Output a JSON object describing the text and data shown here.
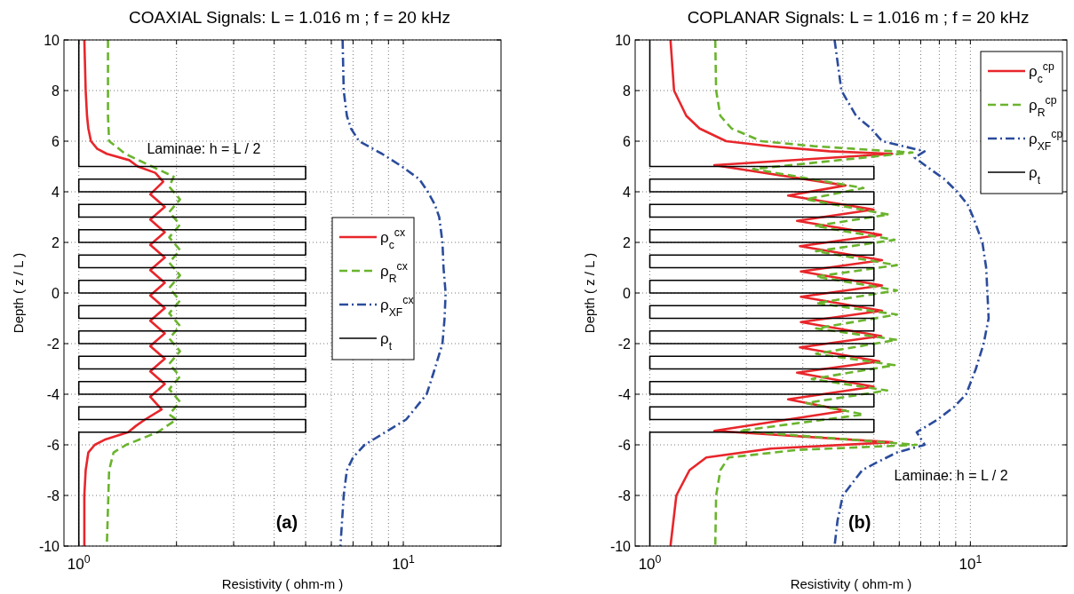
{
  "chart_data": [
    {
      "type": "line",
      "title": "COAXIAL Signals:  L = 1.016 m ;  f = 20 kHz",
      "xlabel": "Resistivity ( ohm-m )",
      "ylabel": "Depth ( z / L )",
      "log": "x",
      "xlim": [
        0.9,
        20
      ],
      "ylim": [
        -10,
        10
      ],
      "xticks": [
        {
          "value": 1,
          "label": "10$^{0}$"
        },
        {
          "value": 2,
          "label": null
        },
        {
          "value": 3,
          "label": null
        },
        {
          "value": 4,
          "label": null
        },
        {
          "value": 5,
          "label": null
        },
        {
          "value": 6,
          "label": null
        },
        {
          "value": 7,
          "label": null
        },
        {
          "value": 8,
          "label": null
        },
        {
          "value": 9,
          "label": null
        },
        {
          "value": 10,
          "label": "10$^{1}$"
        }
      ],
      "yticks": [
        -10,
        -8,
        -6,
        -4,
        -2,
        0,
        2,
        4,
        6,
        8,
        10
      ],
      "grid": true,
      "legend": "right",
      "marker": "none",
      "annotations": [
        "Laminae:  h = L / 2",
        "(a)"
      ],
      "series": [
        {
          "name": "ρ$_{c}$$^{cx}$",
          "color": "#e8262b",
          "line_style": "solid",
          "x": [
            1.04,
            1.05,
            1.06,
            1.07,
            1.09,
            1.14,
            1.22,
            1.43,
            1.52,
            1.72,
            1.82,
            1.66,
            1.84,
            1.66,
            1.84,
            1.66,
            1.84,
            1.66,
            1.84,
            1.66,
            1.84,
            1.66,
            1.84,
            1.66,
            1.84,
            1.66,
            1.84,
            1.66,
            1.8,
            1.6,
            1.5,
            1.42,
            1.2,
            1.12,
            1.07,
            1.05,
            1.04,
            1.04
          ],
          "values": [
            10,
            8,
            7,
            6.5,
            6,
            5.7,
            5.5,
            5.25,
            5,
            4.75,
            4.4,
            3.9,
            3.4,
            2.9,
            2.4,
            1.9,
            1.4,
            0.9,
            0.4,
            -0.1,
            -0.6,
            -1.1,
            -1.6,
            -2.1,
            -2.6,
            -3.1,
            -3.6,
            -4.1,
            -4.6,
            -5,
            -5.25,
            -5.5,
            -5.8,
            -6,
            -6.3,
            -7,
            -8,
            -10
          ]
        },
        {
          "name": "ρ$_{R}$$^{cx}$",
          "color": "#6ab42d",
          "line_style": "dashed",
          "x": [
            1.23,
            1.23,
            1.24,
            1.3,
            1.39,
            1.68,
            1.96,
            1.9,
            2.05,
            1.9,
            2.05,
            1.9,
            2.05,
            1.9,
            2.05,
            1.9,
            2.05,
            1.9,
            2.05,
            1.9,
            2.05,
            1.9,
            2.05,
            1.9,
            2.05,
            1.9,
            2.0,
            1.75,
            1.4,
            1.28,
            1.24,
            1.22
          ],
          "values": [
            10,
            7,
            6,
            5.8,
            5.5,
            5,
            4.6,
            4.2,
            3.7,
            3.2,
            2.7,
            2.2,
            1.7,
            1.2,
            0.7,
            0.2,
            -0.3,
            -0.8,
            -1.3,
            -1.8,
            -2.3,
            -2.8,
            -3.3,
            -3.8,
            -4.3,
            -4.8,
            -5,
            -5.5,
            -6,
            -6.3,
            -7,
            -10
          ]
        },
        {
          "name": "ρ$_{XF}$$^{cx}$",
          "color": "#2b4c9c",
          "line_style": "dashdot",
          "x": [
            6.5,
            6.55,
            6.7,
            6.9,
            7.3,
            8.6,
            9.9,
            11.2,
            11.9,
            12.5,
            12.9,
            13.2,
            13.3,
            13.5,
            13.4,
            13.2,
            12.5,
            11.8,
            10.2,
            8.8,
            7.6,
            7.0,
            6.7,
            6.55,
            6.4
          ],
          "values": [
            10,
            8,
            7,
            6.5,
            6,
            5.5,
            5,
            4.5,
            4,
            3.5,
            3,
            2,
            1,
            0,
            -1,
            -2,
            -3,
            -4,
            -5,
            -5.5,
            -6,
            -6.5,
            -7,
            -8,
            -10
          ]
        },
        {
          "name": "ρ$_{t}$",
          "color": "#000000",
          "line_style": "solid",
          "x": [
            1,
            1,
            5,
            5,
            1,
            1,
            5,
            5,
            1,
            1,
            5,
            5,
            1,
            1,
            5,
            5,
            1,
            1,
            5,
            5,
            1,
            1,
            5,
            5,
            1,
            1,
            5,
            5,
            1,
            1,
            5,
            5,
            1,
            1,
            5,
            5,
            1,
            1,
            5,
            5,
            1,
            1,
            5,
            5,
            1,
            1
          ],
          "values": [
            10,
            5,
            5,
            4.5,
            4.5,
            4,
            4,
            3.5,
            3.5,
            3,
            3,
            2.5,
            2.5,
            2,
            2,
            1.5,
            1.5,
            1,
            1,
            0.5,
            0.5,
            0,
            0,
            -0.5,
            -0.5,
            -1,
            -1,
            -1.5,
            -1.5,
            -2,
            -2,
            -2.5,
            -2.5,
            -3,
            -3,
            -3.5,
            -3.5,
            -4,
            -4,
            -4.5,
            -4.5,
            -5,
            -5,
            -5.5,
            -5.5,
            -10
          ]
        }
      ]
    },
    {
      "type": "line",
      "title": "COPLANAR Signals:  L = 1.016 m ;  f = 20 kHz",
      "xlabel": "Resistivity ( ohm-m )",
      "ylabel": "Depth ( z / L )",
      "log": "x",
      "xlim": [
        0.9,
        20
      ],
      "ylim": [
        -10,
        10
      ],
      "xticks": [
        {
          "value": 1,
          "label": "10$^{0}$"
        },
        {
          "value": 2,
          "label": null
        },
        {
          "value": 3,
          "label": null
        },
        {
          "value": 4,
          "label": null
        },
        {
          "value": 5,
          "label": null
        },
        {
          "value": 6,
          "label": null
        },
        {
          "value": 7,
          "label": null
        },
        {
          "value": 8,
          "label": null
        },
        {
          "value": 9,
          "label": null
        },
        {
          "value": 10,
          "label": "10$^{1}$"
        }
      ],
      "yticks": [
        -10,
        -8,
        -6,
        -4,
        -2,
        0,
        2,
        4,
        6,
        8,
        10
      ],
      "grid": true,
      "legend": "top right",
      "marker": "none",
      "annotations": [
        "Laminae:  h = L / 2",
        "(b)"
      ],
      "series": [
        {
          "name": "ρ$_{c}$$^{cp}$",
          "color": "#e8262b",
          "line_style": "solid",
          "x": [
            1.16,
            1.19,
            1.3,
            1.43,
            1.73,
            2.38,
            3.63,
            5.7,
            1.59,
            4.08,
            2.7,
            4.99,
            2.88,
            5.27,
            2.94,
            5.3,
            2.96,
            5.3,
            2.96,
            5.3,
            2.96,
            5.27,
            2.94,
            5.2,
            2.88,
            4.99,
            2.7,
            4.08,
            1.59,
            5.7,
            2.38,
            1.5,
            1.33,
            1.21,
            1.16
          ],
          "values": [
            10,
            8,
            7,
            6.5,
            6,
            5.8,
            5.6,
            5.5,
            5.05,
            4.25,
            3.85,
            3.3,
            2.85,
            2.3,
            1.85,
            1.3,
            0.85,
            0.3,
            -0.15,
            -0.7,
            -1.15,
            -1.7,
            -2.15,
            -2.7,
            -3.15,
            -3.7,
            -4.2,
            -4.65,
            -5.45,
            -5.9,
            -6.15,
            -6.5,
            -7,
            -8,
            -10
          ]
        },
        {
          "name": "ρ$_{R}$$^{cp}$",
          "color": "#6ab42d",
          "line_style": "dashed",
          "x": [
            1.6,
            1.61,
            1.66,
            1.8,
            2.23,
            3.27,
            6.6,
            2.1,
            4.64,
            3.07,
            5.56,
            3.27,
            5.8,
            3.3,
            5.9,
            3.3,
            5.9,
            3.3,
            5.9,
            3.3,
            5.9,
            3.3,
            5.8,
            3.2,
            5.5,
            3.07,
            4.64,
            1.9,
            6.8,
            2.9,
            1.76,
            1.66,
            1.61,
            1.6
          ],
          "values": [
            10,
            8,
            7,
            6.5,
            6,
            5.8,
            5.55,
            4.9,
            4.15,
            3.7,
            3.1,
            2.65,
            2.1,
            1.65,
            1.1,
            0.65,
            0.1,
            -0.4,
            -0.85,
            -1.4,
            -1.85,
            -2.4,
            -2.85,
            -3.4,
            -3.85,
            -4.35,
            -4.8,
            -5.45,
            -6,
            -6.2,
            -6.5,
            -7,
            -8,
            -10
          ]
        },
        {
          "name": "ρ$_{XF}$$^{cp}$",
          "color": "#2b4c9c",
          "line_style": "dashdot",
          "x": [
            3.77,
            3.96,
            4.4,
            4.9,
            5.3,
            7.2,
            6.7,
            7.3,
            8.3,
            9.1,
            9.8,
            10.2,
            10.9,
            11.2,
            11.3,
            11.4,
            11.0,
            10.4,
            9.7,
            8.9,
            7.9,
            6.8,
            7.2,
            5.9,
            5.1,
            4.6,
            4.0,
            3.85,
            3.77
          ],
          "values": [
            10,
            8,
            7,
            6.5,
            6,
            5.6,
            5.35,
            5,
            4.5,
            4,
            3.5,
            3,
            2,
            1,
            0,
            -1,
            -2,
            -3,
            -4,
            -4.5,
            -5,
            -5.5,
            -6,
            -6.3,
            -6.7,
            -7,
            -8,
            -9,
            -10
          ]
        },
        {
          "name": "ρ$_{t}$",
          "color": "#000000",
          "line_style": "solid",
          "x": [
            1,
            1,
            5,
            5,
            1,
            1,
            5,
            5,
            1,
            1,
            5,
            5,
            1,
            1,
            5,
            5,
            1,
            1,
            5,
            5,
            1,
            1,
            5,
            5,
            1,
            1,
            5,
            5,
            1,
            1,
            5,
            5,
            1,
            1,
            5,
            5,
            1,
            1,
            5,
            5,
            1,
            1,
            5,
            5,
            1,
            1
          ],
          "values": [
            10,
            5,
            5,
            4.5,
            4.5,
            4,
            4,
            3.5,
            3.5,
            3,
            3,
            2.5,
            2.5,
            2,
            2,
            1.5,
            1.5,
            1,
            1,
            0.5,
            0.5,
            0,
            0,
            -0.5,
            -0.5,
            -1,
            -1,
            -1.5,
            -1.5,
            -2,
            -2,
            -2.5,
            -2.5,
            -3,
            -3,
            -3.5,
            -3.5,
            -4,
            -4,
            -4.5,
            -4.5,
            -5,
            -5,
            -5.5,
            -5.5,
            -10
          ]
        }
      ]
    }
  ]
}
